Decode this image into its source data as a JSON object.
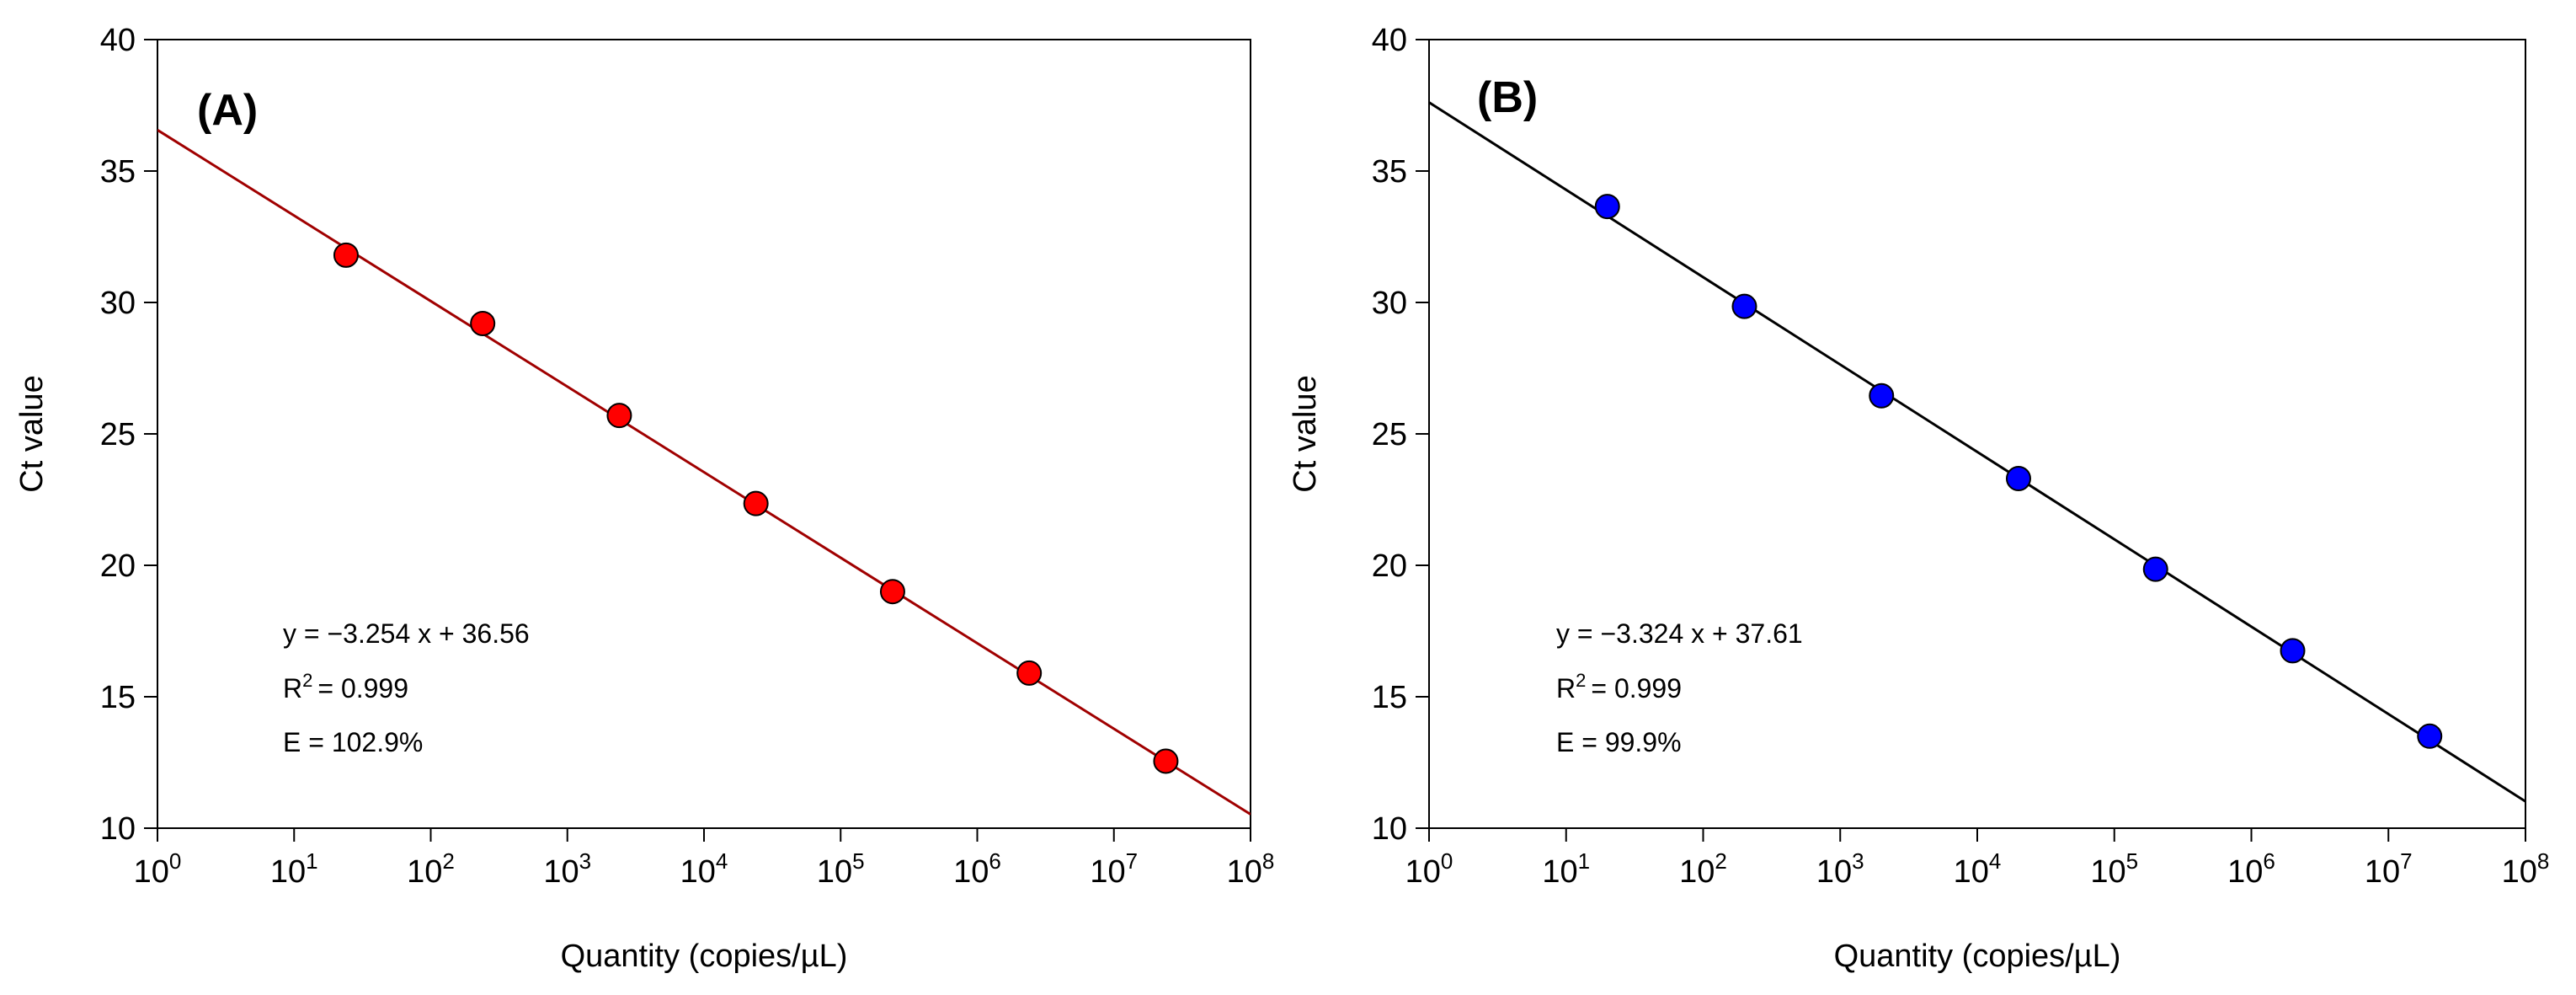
{
  "chart_data": [
    {
      "type": "scatter",
      "panel_label": "(A)",
      "xlabel": "Quantity (copies/µL)",
      "ylabel": "Ct value",
      "x_scale": "log10",
      "x_tick_base": "10",
      "x_tick_exponents": [
        "0",
        "1",
        "2",
        "3",
        "4",
        "5",
        "6",
        "7",
        "8"
      ],
      "xlim_log10": [
        0,
        8
      ],
      "ylim": [
        10,
        40
      ],
      "y_ticks": [
        "10",
        "15",
        "20",
        "25",
        "30",
        "35",
        "40"
      ],
      "series": [
        {
          "name": "A",
          "x": [
            24,
            240,
            2400,
            24000,
            240000,
            2400000,
            24000000
          ],
          "values": [
            31.8,
            29.2,
            25.7,
            22.35,
            19.0,
            15.9,
            12.55
          ],
          "marker_color": "#ff0000",
          "line_color": "#a00000"
        }
      ],
      "fit": {
        "slope": -3.254,
        "intercept": 36.56
      },
      "annotations": {
        "equation": "y = −3.254 x + 36.56",
        "r2_label": "R",
        "r2_sup": "2",
        "r2_value": "= 0.999",
        "efficiency": "E = 102.9%"
      }
    },
    {
      "type": "scatter",
      "panel_label": "(B)",
      "xlabel": "Quantity (copies/µL)",
      "ylabel": "Ct value",
      "x_scale": "log10",
      "x_tick_base": "10",
      "x_tick_exponents": [
        "0",
        "1",
        "2",
        "3",
        "4",
        "5",
        "6",
        "7",
        "8"
      ],
      "xlim_log10": [
        0,
        8
      ],
      "ylim": [
        10,
        40
      ],
      "y_ticks": [
        "10",
        "15",
        "20",
        "25",
        "30",
        "35",
        "40"
      ],
      "series": [
        {
          "name": "B",
          "x": [
            20,
            200,
            2000,
            20000,
            200000,
            2000000,
            20000000
          ],
          "values": [
            33.65,
            29.85,
            26.45,
            23.3,
            19.85,
            16.75,
            13.5
          ],
          "marker_color": "#0000ff",
          "line_color": "#000000"
        }
      ],
      "fit": {
        "slope": -3.324,
        "intercept": 37.61
      },
      "annotations": {
        "equation": "y = −3.324 x + 37.61",
        "r2_label": "R",
        "r2_sup": "2",
        "r2_value": "= 0.999",
        "efficiency": "E = 99.9%"
      }
    }
  ]
}
